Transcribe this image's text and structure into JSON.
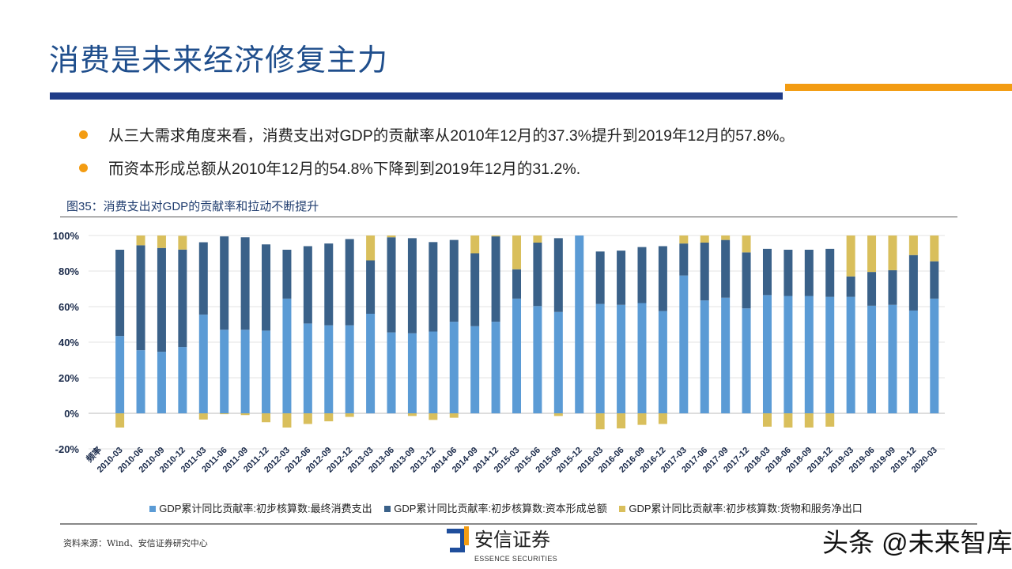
{
  "header": {
    "title": "消费是未来经济修复主力"
  },
  "bullets": [
    "从三大需求角度来看，消费支出对GDP的贡献率从2010年12月的37.3%提升到2019年12月的57.8%。",
    "而资本形成总额从2010年12月的54.8%下降到到2019年12月的31.2%."
  ],
  "figure_caption": "图35：消费支出对GDP的贡献率和拉动不断提升",
  "chart_data": {
    "type": "bar",
    "stacked": true,
    "grid": true,
    "legend_position": "bottom",
    "ylim": [
      -20,
      100
    ],
    "yticks": [
      "-20%",
      "0%",
      "20%",
      "40%",
      "60%",
      "80%",
      "100%"
    ],
    "first_category_label": "频率",
    "categories": [
      "2010-03",
      "2010-06",
      "2010-09",
      "2010-12",
      "2011-03",
      "2011-06",
      "2011-09",
      "2011-12",
      "2012-03",
      "2012-06",
      "2012-09",
      "2012-12",
      "2013-03",
      "2013-06",
      "2013-09",
      "2013-12",
      "2014-06",
      "2014-09",
      "2014-12",
      "2015-03",
      "2015-06",
      "2015-09",
      "2015-12",
      "2016-03",
      "2016-06",
      "2016-09",
      "2016-12",
      "2017-03",
      "2017-06",
      "2017-09",
      "2017-12",
      "2018-03",
      "2018-06",
      "2018-09",
      "2018-12",
      "2019-03",
      "2019-06",
      "2019-09",
      "2019-12",
      "2020-03"
    ],
    "series": [
      {
        "name": "GDP累计同比贡献率:初步核算数:最终消费支出",
        "color": "#5b9bd5",
        "values": [
          43.5,
          35.5,
          34.6,
          37.3,
          55.5,
          47,
          47,
          46.5,
          64.5,
          50.5,
          49.5,
          49.5,
          56,
          45.5,
          45,
          46,
          51.5,
          49,
          51.5,
          64.5,
          60.3,
          57,
          100,
          61.5,
          61,
          62,
          57.5,
          77.5,
          63.5,
          65,
          59,
          66.5,
          66,
          66,
          65.5,
          65.5,
          60.5,
          61,
          57.8,
          64.5
        ]
      },
      {
        "name": "GDP累计同比贡献率:初步核算数:资本形成总额",
        "color": "#3a6189",
        "values": [
          48.5,
          59,
          58.4,
          54.8,
          40.7,
          52.5,
          52,
          48.5,
          27.5,
          43.5,
          46,
          48.5,
          30,
          53.5,
          53.5,
          50.3,
          46,
          41,
          48,
          16.5,
          35.7,
          41.5,
          0,
          29.5,
          30.5,
          31.5,
          36.5,
          18,
          32.5,
          32.5,
          31.5,
          26,
          26,
          26,
          27,
          11.5,
          19,
          19.5,
          31.2,
          21
        ]
      },
      {
        "name": "GDP累计同比贡献率:初步核算数:货物和服务净出口",
        "color": "#d9bf5c",
        "values": [
          -8,
          5.5,
          7,
          7.7,
          -3.5,
          -0.5,
          -1,
          -5,
          -8,
          -6,
          -4.5,
          -2,
          14,
          1,
          -1.5,
          -3.7,
          -2.5,
          10,
          0.5,
          19,
          4,
          -1.5,
          0,
          -9,
          -8.5,
          -6.5,
          -6,
          4.5,
          4,
          2.5,
          9.5,
          -7.5,
          -8,
          -8,
          -7.5,
          23,
          20.5,
          19.5,
          11,
          14.5
        ]
      }
    ]
  },
  "footer": {
    "source": "资料来源：Wind、安信证券研究中心",
    "logo_cn": "安信证券",
    "logo_en": "ESSENCE SECURITIES",
    "watermark": "头条 @未来智库"
  }
}
